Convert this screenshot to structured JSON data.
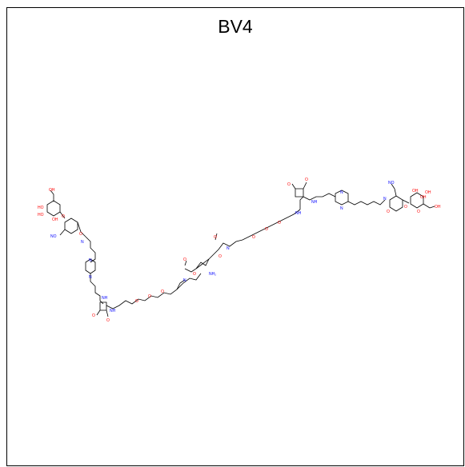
{
  "title": "BV4",
  "colors": {
    "bond": "#000000",
    "oxygen": "#ff0000",
    "nitrogen": "#0000ff",
    "frame": "#000000"
  },
  "atom_labels": {
    "oxygen": "O",
    "hydroxyl": "HO",
    "hydroxyl_r": "OH",
    "nitro": "NO",
    "amide_n": "N",
    "amine": "NH",
    "amino": "NH₂",
    "ring_n": "N"
  }
}
